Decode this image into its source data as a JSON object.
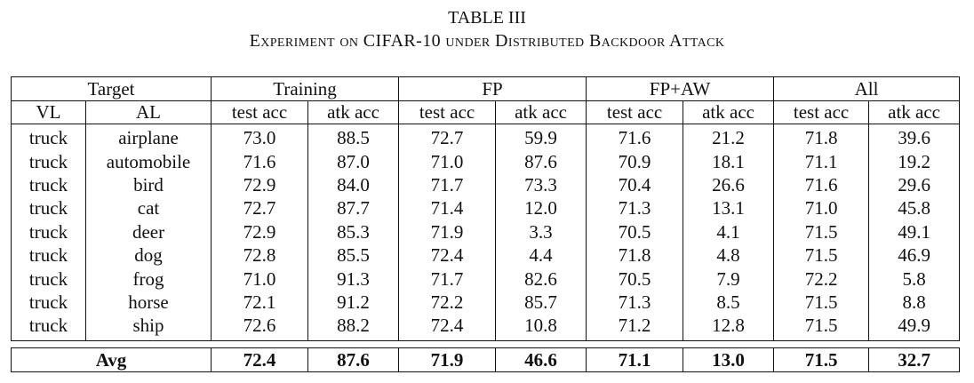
{
  "caption": {
    "label": "TABLE III",
    "title": "Experiment on CIFAR-10 under Distributed Backdoor Attack"
  },
  "header_groups": [
    "Target",
    "Training",
    "FP",
    "FP+AW",
    "All"
  ],
  "sub_headers": [
    "VL",
    "AL",
    "test acc",
    "atk acc",
    "test acc",
    "atk acc",
    "test acc",
    "atk acc",
    "test acc",
    "atk acc"
  ],
  "rows": [
    [
      "truck",
      "airplane",
      "73.0",
      "88.5",
      "72.7",
      "59.9",
      "71.6",
      "21.2",
      "71.8",
      "39.6"
    ],
    [
      "truck",
      "automobile",
      "71.6",
      "87.0",
      "71.0",
      "87.6",
      "70.9",
      "18.1",
      "71.1",
      "19.2"
    ],
    [
      "truck",
      "bird",
      "72.9",
      "84.0",
      "71.7",
      "73.3",
      "70.4",
      "26.6",
      "71.6",
      "29.6"
    ],
    [
      "truck",
      "cat",
      "72.7",
      "87.7",
      "71.4",
      "12.0",
      "71.3",
      "13.1",
      "71.0",
      "45.8"
    ],
    [
      "truck",
      "deer",
      "72.9",
      "85.3",
      "71.9",
      "3.3",
      "70.5",
      "4.1",
      "71.5",
      "49.1"
    ],
    [
      "truck",
      "dog",
      "72.8",
      "85.5",
      "72.4",
      "4.4",
      "71.8",
      "4.8",
      "71.5",
      "46.9"
    ],
    [
      "truck",
      "frog",
      "71.0",
      "91.3",
      "71.7",
      "82.6",
      "70.5",
      "7.9",
      "72.2",
      "5.8"
    ],
    [
      "truck",
      "horse",
      "72.1",
      "91.2",
      "72.2",
      "85.7",
      "71.3",
      "8.5",
      "71.5",
      "8.8"
    ],
    [
      "truck",
      "ship",
      "72.6",
      "88.2",
      "72.4",
      "10.8",
      "71.2",
      "12.8",
      "71.5",
      "49.9"
    ]
  ],
  "avg_row": [
    "Avg",
    "72.4",
    "87.6",
    "71.9",
    "46.6",
    "71.1",
    "13.0",
    "71.5",
    "32.7"
  ]
}
